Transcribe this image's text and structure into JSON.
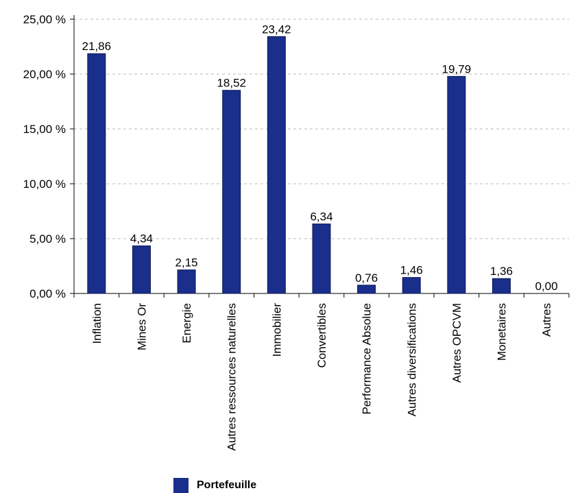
{
  "chart_data": {
    "type": "bar",
    "categories": [
      "Inflation",
      "Mines Or",
      "Energie",
      "Autres ressources naturelles",
      "Immobilier",
      "Convertibles",
      "Performance Absolue",
      "Autres diversifications",
      "Autres OPCVM",
      "Monetaires",
      "Autres"
    ],
    "series": [
      {
        "name": "Portefeuille",
        "values": [
          21.86,
          4.34,
          2.15,
          18.52,
          23.42,
          6.34,
          0.76,
          1.46,
          19.79,
          1.36,
          0.0
        ],
        "value_labels": [
          "21,86",
          "4,34",
          "2,15",
          "18,52",
          "23,42",
          "6,34",
          "0,76",
          "1,46",
          "19,79",
          "1,36",
          "0,00"
        ],
        "color": "#1a2f8c"
      }
    ],
    "ylim": [
      0,
      25
    ],
    "yticks": [
      0,
      5,
      10,
      15,
      20,
      25
    ],
    "ytick_labels": [
      "0,00 %",
      "5,00 %",
      "10,00 %",
      "15,00 %",
      "20,00 %",
      "25,00 %"
    ],
    "grid": true,
    "legend_position": "bottom-left",
    "title": "",
    "xlabel": "",
    "ylabel": ""
  }
}
